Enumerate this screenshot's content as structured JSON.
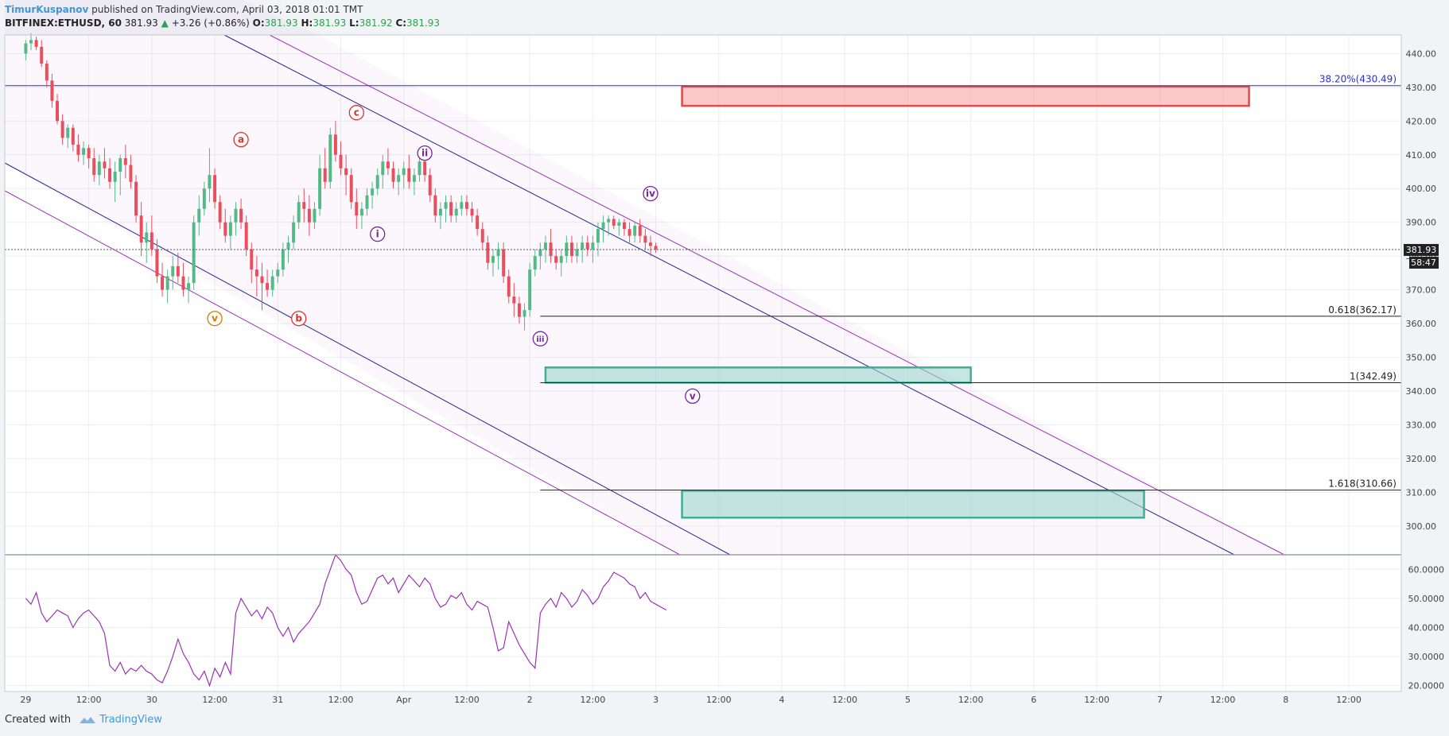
{
  "header": {
    "author": "TimurKuspanov",
    "published_text": "published on TradingView.com, April 03, 2018 01:01 TMT",
    "symbol": "BITFINEX:ETHUSD, 60",
    "last": "381.93",
    "change": "+3.26 (+0.86%)",
    "open_label": "O:",
    "open": "381.93",
    "high_label": "H:",
    "high": "381.93",
    "low_label": "L:",
    "low": "381.92",
    "close_label": "C:",
    "close": "381.93"
  },
  "footer": {
    "created_with": "Created with",
    "brand": "TradingView"
  },
  "colors": {
    "up": "#53b987",
    "down": "#eb4d5c",
    "rsi": "#9b32b4",
    "channel_blue": "#1e2a8e",
    "channel_purple": "#9b32b4",
    "fib_blue": "#2a2fd6"
  },
  "chart_data": {
    "type": "candlestick",
    "price_axis": {
      "ticks": [
        "440.00",
        "430.00",
        "420.00",
        "410.00",
        "400.00",
        "390.00",
        "380.00",
        "370.00",
        "360.00",
        "350.00",
        "340.00",
        "330.00",
        "320.00",
        "310.00",
        "300.00"
      ],
      "ylim": [
        291.5,
        445.5
      ]
    },
    "current_price": "381.93",
    "countdown": "58:47",
    "rsi_axis": {
      "ticks": [
        "60.0000",
        "50.0000",
        "40.0000",
        "30.0000",
        "20.0000"
      ],
      "ylim": [
        18,
        65
      ]
    },
    "time_axis": [
      "29",
      "12:00",
      "30",
      "12:00",
      "31",
      "12:00",
      "Apr",
      "12:00",
      "2",
      "12:00",
      "3",
      "12:00",
      "4",
      "12:00",
      "5",
      "12:00",
      "6",
      "12:00",
      "7",
      "12:00",
      "8",
      "12:00"
    ],
    "time_range_hours": [
      -4,
      262
    ],
    "fib_levels": [
      {
        "label": "38.20%(430.49)",
        "price": 430.49
      },
      {
        "label": "0.618(362.17)",
        "price": 362.17
      },
      {
        "label": "1(342.49)",
        "price": 342.49
      },
      {
        "label": "1.618(310.66)",
        "price": 310.66
      }
    ],
    "wave_labels": [
      {
        "text": "a",
        "hour": 41,
        "price": 414.5,
        "color": "red"
      },
      {
        "text": "b",
        "hour": 52,
        "price": 361.5,
        "color": "red"
      },
      {
        "text": "c",
        "hour": 63,
        "price": 422.5,
        "color": "red"
      },
      {
        "text": "v",
        "hour": 36,
        "price": 361.5,
        "color": "orange"
      },
      {
        "text": "i",
        "hour": 67,
        "price": 386.5,
        "color": "purple"
      },
      {
        "text": "ii",
        "hour": 76,
        "price": 410.5,
        "color": "purple"
      },
      {
        "text": "iii",
        "hour": 98,
        "price": 355.5,
        "color": "purple"
      },
      {
        "text": "iv",
        "hour": 119,
        "price": 398.5,
        "color": "purple"
      },
      {
        "text": "v",
        "hour": 127,
        "price": 338.5,
        "color": "purple"
      }
    ],
    "zones": [
      {
        "kind": "resistance",
        "h0": 125,
        "h1": 233,
        "p0": 430.2,
        "p1": 424.5
      },
      {
        "kind": "support",
        "h0": 99,
        "h1": 180,
        "p0": 347,
        "p1": 342.5
      },
      {
        "kind": "support",
        "h0": 125,
        "h1": 213,
        "p0": 310.5,
        "p1": 302.5
      }
    ],
    "candles": [
      [
        440,
        444,
        438,
        443
      ],
      [
        443,
        446,
        441,
        444
      ],
      [
        444,
        445,
        441,
        442
      ],
      [
        442,
        444,
        436,
        437
      ],
      [
        437,
        438,
        430,
        432
      ],
      [
        432,
        434,
        424,
        426
      ],
      [
        426,
        428,
        419,
        420
      ],
      [
        420,
        422,
        413,
        415
      ],
      [
        415,
        419,
        412,
        418
      ],
      [
        418,
        419,
        411,
        413
      ],
      [
        413,
        416,
        408,
        410
      ],
      [
        410,
        414,
        407,
        412
      ],
      [
        412,
        413,
        406,
        409
      ],
      [
        409,
        412,
        402,
        404
      ],
      [
        404,
        410,
        401,
        408
      ],
      [
        408,
        412,
        403,
        406
      ],
      [
        406,
        409,
        400,
        402
      ],
      [
        402,
        408,
        396,
        405
      ],
      [
        405,
        410,
        398,
        409
      ],
      [
        409,
        413,
        403,
        407
      ],
      [
        407,
        410,
        400,
        402
      ],
      [
        402,
        404,
        390,
        392
      ],
      [
        392,
        396,
        380,
        384
      ],
      [
        384,
        390,
        378,
        387
      ],
      [
        387,
        392,
        380,
        382
      ],
      [
        382,
        385,
        372,
        374
      ],
      [
        374,
        378,
        368,
        370
      ],
      [
        370,
        376,
        366,
        374
      ],
      [
        374,
        380,
        370,
        377
      ],
      [
        377,
        381,
        372,
        374
      ],
      [
        374,
        378,
        368,
        370
      ],
      [
        370,
        374,
        366,
        372
      ],
      [
        372,
        392,
        370,
        390
      ],
      [
        390,
        398,
        386,
        394
      ],
      [
        394,
        402,
        392,
        400
      ],
      [
        400,
        412,
        396,
        404
      ],
      [
        404,
        406,
        394,
        396
      ],
      [
        396,
        398,
        388,
        390
      ],
      [
        390,
        394,
        384,
        386
      ],
      [
        386,
        392,
        382,
        390
      ],
      [
        390,
        396,
        386,
        394
      ],
      [
        394,
        397,
        388,
        390
      ],
      [
        390,
        392,
        380,
        382
      ],
      [
        382,
        384,
        372,
        376
      ],
      [
        376,
        380,
        368,
        374
      ],
      [
        374,
        378,
        364,
        372
      ],
      [
        372,
        376,
        368,
        370
      ],
      [
        370,
        376,
        368,
        374
      ],
      [
        374,
        378,
        372,
        376
      ],
      [
        376,
        384,
        374,
        382
      ],
      [
        382,
        386,
        378,
        384
      ],
      [
        384,
        392,
        382,
        390
      ],
      [
        390,
        398,
        388,
        396
      ],
      [
        396,
        400,
        390,
        394
      ],
      [
        394,
        398,
        386,
        390
      ],
      [
        390,
        396,
        388,
        394
      ],
      [
        394,
        410,
        392,
        406
      ],
      [
        406,
        412,
        400,
        402
      ],
      [
        402,
        418,
        400,
        416
      ],
      [
        416,
        420,
        408,
        410
      ],
      [
        410,
        414,
        404,
        406
      ],
      [
        406,
        410,
        398,
        404
      ],
      [
        404,
        406,
        394,
        396
      ],
      [
        396,
        400,
        388,
        392
      ],
      [
        392,
        396,
        388,
        394
      ],
      [
        394,
        400,
        392,
        398
      ],
      [
        398,
        402,
        394,
        400
      ],
      [
        400,
        406,
        398,
        404
      ],
      [
        404,
        410,
        400,
        408
      ],
      [
        408,
        412,
        404,
        406
      ],
      [
        406,
        408,
        400,
        402
      ],
      [
        402,
        406,
        398,
        404
      ],
      [
        404,
        408,
        400,
        406
      ],
      [
        406,
        410,
        400,
        402
      ],
      [
        402,
        406,
        398,
        404
      ],
      [
        404,
        410,
        402,
        408
      ],
      [
        408,
        410,
        402,
        404
      ],
      [
        404,
        406,
        396,
        398
      ],
      [
        398,
        400,
        390,
        392
      ],
      [
        392,
        396,
        388,
        394
      ],
      [
        394,
        398,
        390,
        396
      ],
      [
        396,
        398,
        390,
        392
      ],
      [
        392,
        396,
        390,
        394
      ],
      [
        394,
        398,
        392,
        396
      ],
      [
        396,
        398,
        392,
        394
      ],
      [
        394,
        396,
        390,
        392
      ],
      [
        392,
        394,
        386,
        388
      ],
      [
        388,
        390,
        382,
        384
      ],
      [
        384,
        386,
        376,
        378
      ],
      [
        378,
        382,
        374,
        380
      ],
      [
        380,
        384,
        376,
        382
      ],
      [
        382,
        384,
        372,
        374
      ],
      [
        374,
        376,
        366,
        368
      ],
      [
        368,
        372,
        362,
        366
      ],
      [
        366,
        368,
        360,
        362
      ],
      [
        362,
        366,
        358,
        364
      ],
      [
        364,
        378,
        362,
        376
      ],
      [
        376,
        382,
        374,
        380
      ],
      [
        380,
        384,
        376,
        382
      ],
      [
        382,
        386,
        378,
        384
      ],
      [
        384,
        388,
        378,
        380
      ],
      [
        380,
        382,
        376,
        378
      ],
      [
        378,
        382,
        374,
        380
      ],
      [
        380,
        386,
        378,
        384
      ],
      [
        384,
        386,
        378,
        380
      ],
      [
        380,
        384,
        378,
        382
      ],
      [
        382,
        386,
        378,
        384
      ],
      [
        384,
        386,
        380,
        382
      ],
      [
        382,
        386,
        378,
        384
      ],
      [
        384,
        390,
        380,
        388
      ],
      [
        388,
        392,
        384,
        390
      ],
      [
        390,
        392,
        386,
        391
      ],
      [
        391,
        392,
        388,
        389
      ],
      [
        389,
        391,
        386,
        390
      ],
      [
        390,
        391,
        386,
        388
      ],
      [
        388,
        390,
        384,
        386
      ],
      [
        386,
        390,
        384,
        389
      ],
      [
        389,
        391,
        384,
        386
      ],
      [
        386,
        388,
        382,
        384
      ],
      [
        384,
        386,
        380,
        383
      ],
      [
        383,
        384,
        381,
        382
      ]
    ],
    "rsi": [
      50,
      48,
      52,
      45,
      42,
      44,
      46,
      45,
      44,
      40,
      43,
      45,
      46,
      44,
      42,
      38,
      27,
      25,
      28,
      24,
      26,
      25,
      27,
      25,
      24,
      22,
      21,
      25,
      30,
      36,
      31,
      28,
      24,
      22,
      25,
      20,
      26,
      23,
      28,
      24,
      45,
      50,
      47,
      44,
      46,
      43,
      47,
      45,
      40,
      37,
      40,
      35,
      38,
      40,
      42,
      45,
      48,
      55,
      60,
      65,
      63,
      60,
      58,
      52,
      48,
      49,
      53,
      57,
      58,
      55,
      57,
      52,
      55,
      58,
      56,
      54,
      57,
      55,
      50,
      47,
      48,
      51,
      50,
      52,
      48,
      46,
      49,
      48,
      47,
      40,
      32,
      33,
      42,
      38,
      34,
      31,
      28,
      26,
      45,
      48,
      50,
      47,
      52,
      50,
      47,
      49,
      53,
      51,
      48,
      50,
      54,
      56,
      59,
      58,
      57,
      55,
      54,
      50,
      52,
      49,
      48,
      47,
      46
    ]
  }
}
